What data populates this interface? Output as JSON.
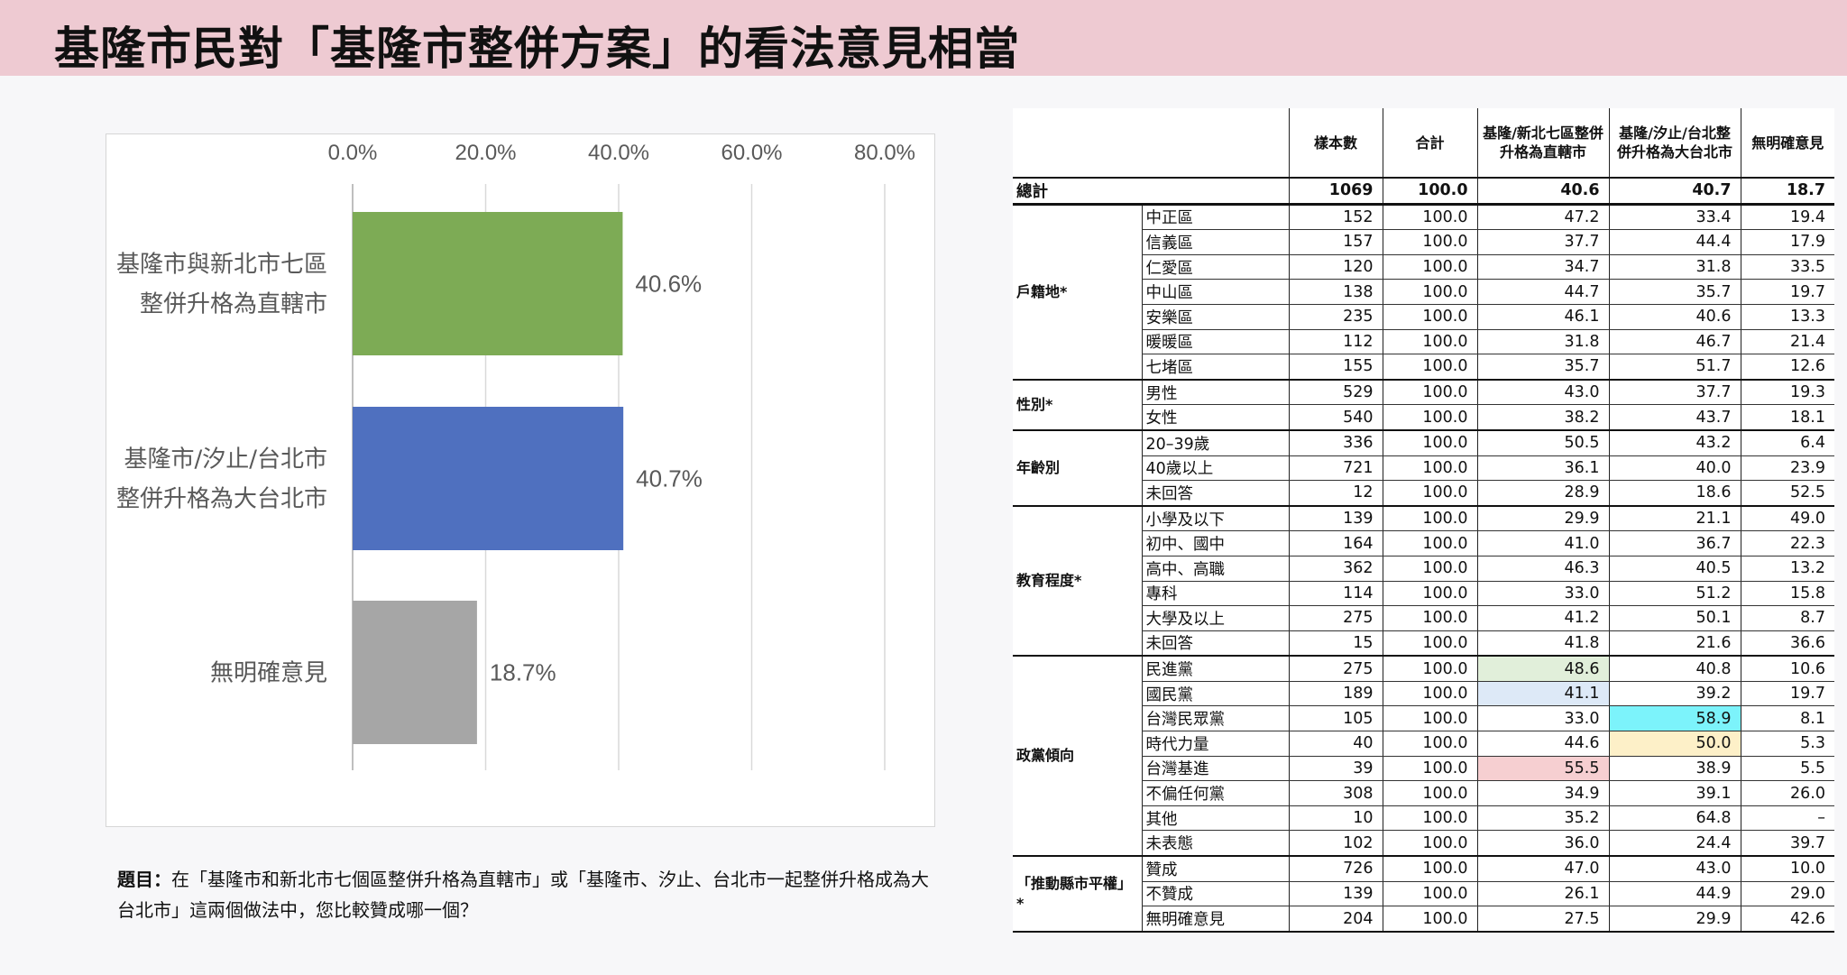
{
  "page": {
    "title": "基隆市民對「基隆市整併方案」的看法意見相當",
    "question_label": "題目：",
    "question_text": "在「基隆市和新北市七個區整併升格為直轄市」或「基隆市、汐止、台北市一起整併升格成為大台北市」這兩個做法中，您比較贊成哪一個？"
  },
  "chart_data": {
    "type": "bar",
    "orientation": "horizontal",
    "categories": [
      [
        "基隆市與新北市七區",
        "整併升格為直轄市"
      ],
      [
        "基隆市/汐止/台北市",
        "整併升格為大台北市"
      ],
      [
        "無明確意見"
      ]
    ],
    "values": [
      40.6,
      40.7,
      18.7
    ],
    "data_labels": [
      "40.6%",
      "40.7%",
      "18.7%"
    ],
    "colors": [
      "#7dab55",
      "#4f70bf",
      "#a6a6a6"
    ],
    "xlim": [
      0,
      80
    ],
    "xticks": [
      "0.0%",
      "20.0%",
      "40.0%",
      "60.0%",
      "80.0%"
    ],
    "x_axis_position": "top",
    "grid": true
  },
  "table": {
    "headers": [
      "樣本數",
      "合計",
      "基隆/新北七區整併升格為直轄市",
      "基隆/汐止/台北整併升格為大台北市",
      "無明確意見"
    ],
    "total": {
      "label": "總計",
      "values": [
        "1069",
        "100.0",
        "40.6",
        "40.7",
        "18.7"
      ]
    },
    "groups": [
      {
        "label": "戶籍地*",
        "rows": [
          {
            "label": "中正區",
            "values": [
              "152",
              "100.0",
              "47.2",
              "33.4",
              "19.4"
            ]
          },
          {
            "label": "信義區",
            "values": [
              "157",
              "100.0",
              "37.7",
              "44.4",
              "17.9"
            ]
          },
          {
            "label": "仁愛區",
            "values": [
              "120",
              "100.0",
              "34.7",
              "31.8",
              "33.5"
            ]
          },
          {
            "label": "中山區",
            "values": [
              "138",
              "100.0",
              "44.7",
              "35.7",
              "19.7"
            ]
          },
          {
            "label": "安樂區",
            "values": [
              "235",
              "100.0",
              "46.1",
              "40.6",
              "13.3"
            ]
          },
          {
            "label": "暖暖區",
            "values": [
              "112",
              "100.0",
              "31.8",
              "46.7",
              "21.4"
            ]
          },
          {
            "label": "七堵區",
            "values": [
              "155",
              "100.0",
              "35.7",
              "51.7",
              "12.6"
            ]
          }
        ]
      },
      {
        "label": "性別*",
        "rows": [
          {
            "label": "男性",
            "values": [
              "529",
              "100.0",
              "43.0",
              "37.7",
              "19.3"
            ]
          },
          {
            "label": "女性",
            "values": [
              "540",
              "100.0",
              "38.2",
              "43.7",
              "18.1"
            ]
          }
        ]
      },
      {
        "label": "年齡別",
        "rows": [
          {
            "label": "20–39歲",
            "values": [
              "336",
              "100.0",
              "50.5",
              "43.2",
              "6.4"
            ]
          },
          {
            "label": "40歲以上",
            "values": [
              "721",
              "100.0",
              "36.1",
              "40.0",
              "23.9"
            ]
          },
          {
            "label": "未回答",
            "values": [
              "12",
              "100.0",
              "28.9",
              "18.6",
              "52.5"
            ]
          }
        ]
      },
      {
        "label": "教育程度*",
        "rows": [
          {
            "label": "小學及以下",
            "values": [
              "139",
              "100.0",
              "29.9",
              "21.1",
              "49.0"
            ]
          },
          {
            "label": "初中、國中",
            "values": [
              "164",
              "100.0",
              "41.0",
              "36.7",
              "22.3"
            ]
          },
          {
            "label": "高中、高職",
            "values": [
              "362",
              "100.0",
              "46.3",
              "40.5",
              "13.2"
            ]
          },
          {
            "label": "專科",
            "values": [
              "114",
              "100.0",
              "33.0",
              "51.2",
              "15.8"
            ]
          },
          {
            "label": "大學及以上",
            "values": [
              "275",
              "100.0",
              "41.2",
              "50.1",
              "8.7"
            ]
          },
          {
            "label": "未回答",
            "values": [
              "15",
              "100.0",
              "41.8",
              "21.6",
              "36.6"
            ]
          }
        ]
      },
      {
        "label": "政黨傾向",
        "rows": [
          {
            "label": "民進黨",
            "values": [
              "275",
              "100.0",
              "48.6",
              "40.8",
              "10.6"
            ],
            "hl": {
              "2": "#e1efda"
            }
          },
          {
            "label": "國民黨",
            "values": [
              "189",
              "100.0",
              "41.1",
              "39.2",
              "19.7"
            ],
            "hl": {
              "2": "#dde9f7"
            }
          },
          {
            "label": "台灣民眾黨",
            "values": [
              "105",
              "100.0",
              "33.0",
              "58.9",
              "8.1"
            ],
            "hl": {
              "3": "#7cf3fb"
            }
          },
          {
            "label": "時代力量",
            "values": [
              "40",
              "100.0",
              "44.6",
              "50.0",
              "5.3"
            ],
            "hl": {
              "3": "#fdf0c8"
            }
          },
          {
            "label": "台灣基進",
            "values": [
              "39",
              "100.0",
              "55.5",
              "38.9",
              "5.5"
            ],
            "hl": {
              "2": "#f6cfd1"
            }
          },
          {
            "label": "不偏任何黨",
            "values": [
              "308",
              "100.0",
              "34.9",
              "39.1",
              "26.0"
            ]
          },
          {
            "label": "其他",
            "values": [
              "10",
              "100.0",
              "35.2",
              "64.8",
              "–"
            ]
          },
          {
            "label": "未表態",
            "values": [
              "102",
              "100.0",
              "36.0",
              "24.4",
              "39.7"
            ]
          }
        ]
      },
      {
        "label": "「推動縣市平權」*",
        "rows": [
          {
            "label": "贊成",
            "values": [
              "726",
              "100.0",
              "47.0",
              "43.0",
              "10.0"
            ]
          },
          {
            "label": "不贊成",
            "values": [
              "139",
              "100.0",
              "26.1",
              "44.9",
              "29.0"
            ]
          },
          {
            "label": "無明確意見",
            "values": [
              "204",
              "100.0",
              "27.5",
              "29.9",
              "42.6"
            ]
          }
        ]
      }
    ]
  }
}
